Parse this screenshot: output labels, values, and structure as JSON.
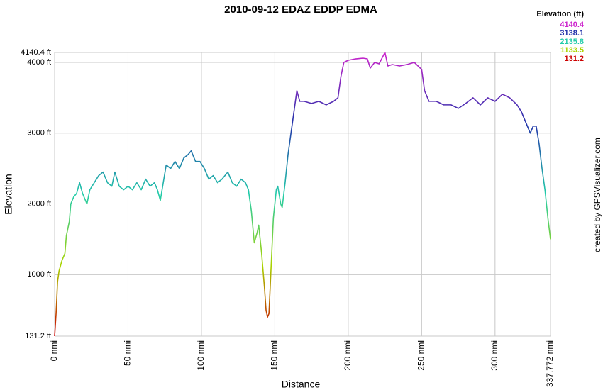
{
  "chart_data": {
    "type": "line",
    "title": "2010-09-12 EDAZ EDDP EDMA",
    "xlabel": "Distance",
    "ylabel": "Elevation",
    "credit": "created by GPSVisualizer.com",
    "legend_title": "Elevation (ft)",
    "color_scale": [
      {
        "value": 4140.4,
        "color": "#cc22cc"
      },
      {
        "value": 3138.1,
        "color": "#2233aa"
      },
      {
        "value": 2135.8,
        "color": "#22ccaa"
      },
      {
        "value": 1133.5,
        "color": "#aad400"
      },
      {
        "value": 131.2,
        "color": "#cc0000"
      }
    ],
    "grid": true,
    "xlim": [
      0,
      337.772
    ],
    "ylim": [
      131.2,
      4140.4
    ],
    "xticks": [
      {
        "value": 0,
        "label": "0 nmi"
      },
      {
        "value": 50,
        "label": "50 nmi"
      },
      {
        "value": 100,
        "label": "100 nmi"
      },
      {
        "value": 150,
        "label": "150 nmi"
      },
      {
        "value": 200,
        "label": "200 nmi"
      },
      {
        "value": 250,
        "label": "250 nmi"
      },
      {
        "value": 300,
        "label": "300 nmi"
      },
      {
        "value": 337.772,
        "label": "337.772 nmi"
      }
    ],
    "yticks": [
      {
        "value": 131.2,
        "label": "131.2 ft"
      },
      {
        "value": 1000,
        "label": "1000 ft"
      },
      {
        "value": 2000,
        "label": "2000 ft"
      },
      {
        "value": 3000,
        "label": "3000 ft"
      },
      {
        "value": 4000,
        "label": "4000 ft"
      },
      {
        "value": 4140.4,
        "label": "4140.4 ft"
      }
    ],
    "x": [
      0,
      1,
      2,
      3,
      5,
      7,
      8,
      10,
      11,
      13,
      15,
      17,
      19,
      22,
      24,
      27,
      30,
      33,
      36,
      39,
      41,
      44,
      47,
      50,
      53,
      56,
      59,
      62,
      65,
      68,
      70,
      72,
      74,
      76,
      79,
      82,
      85,
      88,
      91,
      93,
      96,
      99,
      102,
      105,
      108,
      111,
      114,
      118,
      121,
      124,
      127,
      130,
      132,
      134,
      136,
      138,
      139,
      141,
      143,
      144,
      145,
      146,
      147,
      149,
      151,
      152,
      154,
      155,
      157,
      159,
      161,
      163,
      165,
      167,
      170,
      175,
      180,
      185,
      190,
      193,
      195,
      197,
      200,
      205,
      210,
      213,
      215,
      218,
      221,
      224,
      225,
      227,
      230,
      235,
      240,
      245,
      250,
      252,
      255,
      260,
      265,
      270,
      275,
      280,
      285,
      290,
      295,
      300,
      305,
      310,
      315,
      318,
      320,
      322,
      324,
      326,
      328,
      330,
      332,
      334,
      336,
      337.772
    ],
    "series": [
      {
        "name": "Elevation",
        "values": [
          131.2,
          450,
          900,
          1050,
          1200,
          1300,
          1550,
          1750,
          2000,
          2100,
          2150,
          2300,
          2150,
          2000,
          2200,
          2300,
          2400,
          2450,
          2300,
          2250,
          2450,
          2250,
          2200,
          2250,
          2200,
          2300,
          2200,
          2350,
          2250,
          2300,
          2200,
          2050,
          2300,
          2550,
          2500,
          2600,
          2500,
          2650,
          2700,
          2750,
          2600,
          2600,
          2500,
          2350,
          2400,
          2300,
          2350,
          2450,
          2300,
          2250,
          2350,
          2300,
          2200,
          1900,
          1450,
          1600,
          1700,
          1300,
          800,
          500,
          400,
          450,
          900,
          1800,
          2200,
          2250,
          2000,
          1950,
          2300,
          2700,
          3000,
          3300,
          3600,
          3450,
          3450,
          3420,
          3450,
          3400,
          3450,
          3500,
          3800,
          4000,
          4030,
          4050,
          4060,
          4050,
          3920,
          4000,
          3980,
          4100,
          4140.4,
          3950,
          3970,
          3950,
          3970,
          4000,
          3900,
          3600,
          3450,
          3450,
          3400,
          3400,
          3350,
          3420,
          3500,
          3400,
          3500,
          3450,
          3550,
          3500,
          3400,
          3300,
          3200,
          3100,
          3000,
          3100,
          3100,
          2850,
          2500,
          2200,
          1800,
          1500
        ]
      }
    ]
  }
}
